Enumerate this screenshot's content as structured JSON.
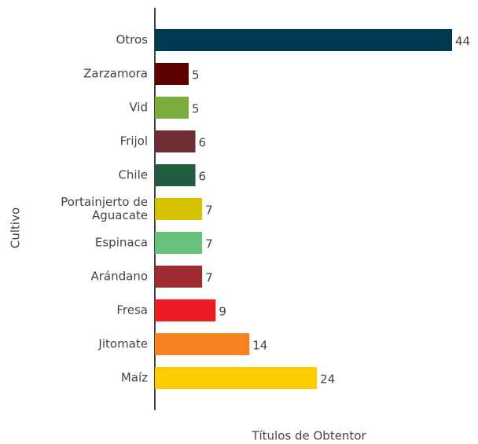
{
  "chart_data": {
    "type": "barh",
    "categories": [
      "Otros",
      "Zarzamora",
      "Vid",
      "Frijol",
      "Chile",
      "Portainjerto de Aguacate",
      "Espinaca",
      "Arándano",
      "Fresa",
      "Jitomate",
      "Maíz"
    ],
    "values": [
      44,
      5,
      5,
      6,
      6,
      7,
      7,
      7,
      9,
      14,
      24
    ],
    "colors": [
      "#003a52",
      "#5c0000",
      "#7aad3c",
      "#6e2e33",
      "#1f5c40",
      "#d4c200",
      "#66c27a",
      "#9e2b30",
      "#ed1c24",
      "#f58220",
      "#ffcc00"
    ],
    "x_label": "Títulos de Obtentor",
    "y_label": "Cultivo"
  }
}
